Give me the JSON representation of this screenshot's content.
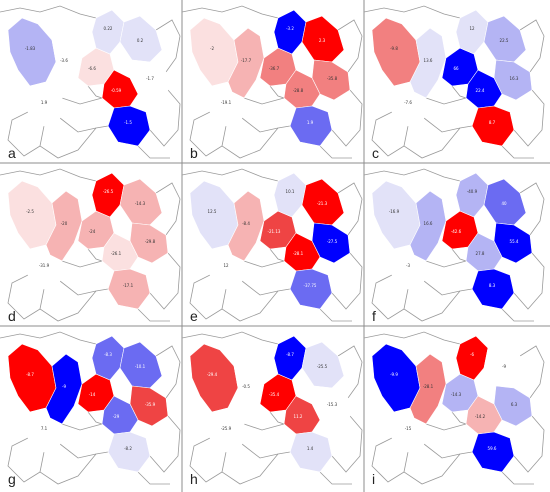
{
  "colors": {
    "strong_red": "#ff0000",
    "red": "#ef4444",
    "mid_red": "#f28080",
    "light_red": "#f6b3b3",
    "pale_red": "#fbe0e0",
    "strong_blue": "#0000ff",
    "mid_blue": "#6b6bf2",
    "light_blue": "#b4b4f4",
    "pale_blue": "#e2e2f8",
    "white": "#ffffff"
  },
  "panels": [
    {
      "label": "a",
      "values": [
        "-1.83",
        "-3.6",
        "-6.6",
        "0.22",
        "0.2",
        "-1.7",
        "-0.59",
        "-1.5",
        "1.9"
      ]
    },
    {
      "label": "b",
      "values": [
        "-2",
        "-17.7",
        "-36.7",
        "-3.2",
        "2.3",
        "-35.8",
        "-28.8",
        "1.9",
        "-19.1"
      ]
    },
    {
      "label": "c",
      "values": [
        "-9.8",
        "13.6",
        "66",
        "12",
        "22.5",
        "16.3",
        "22.4",
        "8.7",
        "-7.6"
      ]
    },
    {
      "label": "d",
      "values": [
        "-2.5",
        "-20",
        "-24",
        "-26.5",
        "-14.3",
        "-29.8",
        "-26.1",
        "-17.1",
        "-31.9"
      ]
    },
    {
      "label": "e",
      "values": [
        "12.5",
        "-8.4",
        "-21.13",
        "10.1",
        "-21.3",
        "-27.5",
        "-28.1",
        "-37.75",
        "12"
      ]
    },
    {
      "label": "f",
      "values": [
        "-16.9",
        "16.6",
        "-42.6",
        "-40.9",
        "40",
        "55.4",
        "27.8",
        "8.3",
        "-3"
      ]
    },
    {
      "label": "g",
      "values": [
        "-8.7",
        "-9",
        "-14",
        "-8.3",
        "-10.1",
        "-35.9",
        "-29",
        "-8.2",
        "7.1"
      ]
    },
    {
      "label": "h",
      "values": [
        "-29.4",
        "-0.5",
        "-35.4",
        "-8.7",
        "-25.5",
        "-15.3",
        "11.2",
        "1.4",
        "-25.9"
      ]
    },
    {
      "label": "i",
      "values": [
        "-9.9",
        "-28.1",
        "-14.3",
        "-6",
        "-9",
        "6.3",
        "-14.2",
        "59.6",
        "-15"
      ]
    }
  ]
}
